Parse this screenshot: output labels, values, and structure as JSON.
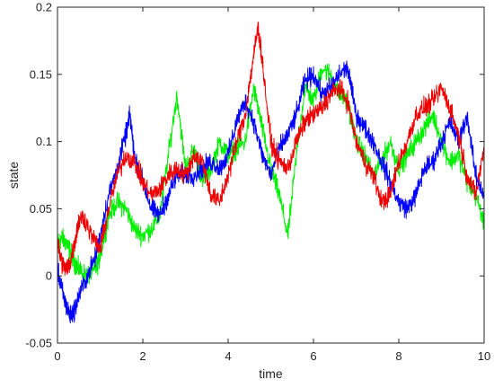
{
  "chart_data": {
    "type": "line",
    "title": "",
    "xlabel": "time",
    "ylabel": "state",
    "xlim": [
      0,
      10
    ],
    "ylim": [
      -0.05,
      0.2
    ],
    "grid": false,
    "x_ticks": [
      0,
      2,
      4,
      6,
      8,
      10
    ],
    "y_ticks": [
      -0.05,
      0,
      0.05,
      0.1,
      0.15,
      0.2
    ],
    "x_tick_labels": [
      "0",
      "2",
      "4",
      "6",
      "8",
      "10"
    ],
    "y_tick_labels": [
      "-0.05",
      "0",
      "0.05",
      "0.1",
      "0.15",
      "0.2"
    ],
    "series": [
      {
        "color": "#0000ff",
        "x": [
          0,
          0.1,
          0.2,
          0.3,
          0.4,
          0.5,
          0.7,
          0.9,
          1.0,
          1.2,
          1.4,
          1.6,
          1.7,
          1.8,
          2.0,
          2.2,
          2.4,
          2.6,
          2.8,
          3.0,
          3.2,
          3.4,
          3.6,
          3.8,
          4.0,
          4.2,
          4.4,
          4.6,
          4.8,
          5.0,
          5.2,
          5.4,
          5.6,
          5.8,
          6.0,
          6.2,
          6.4,
          6.6,
          6.8,
          7.0,
          7.2,
          7.4,
          7.6,
          7.8,
          8.0,
          8.2,
          8.4,
          8.6,
          8.8,
          9.0,
          9.2,
          9.4,
          9.6,
          9.8,
          10.0
        ],
        "y": [
          0.005,
          -0.01,
          -0.022,
          -0.03,
          -0.025,
          -0.015,
          0.0,
          0.015,
          0.03,
          0.06,
          0.08,
          0.105,
          0.12,
          0.09,
          0.07,
          0.05,
          0.045,
          0.06,
          0.075,
          0.075,
          0.075,
          0.08,
          0.085,
          0.08,
          0.09,
          0.115,
          0.13,
          0.115,
          0.09,
          0.075,
          0.095,
          0.105,
          0.12,
          0.145,
          0.15,
          0.135,
          0.14,
          0.15,
          0.155,
          0.12,
          0.11,
          0.1,
          0.085,
          0.07,
          0.055,
          0.05,
          0.06,
          0.08,
          0.085,
          0.1,
          0.115,
          0.1,
          0.12,
          0.075,
          0.06
        ]
      },
      {
        "color": "#00ee00",
        "x": [
          0,
          0.1,
          0.2,
          0.3,
          0.4,
          0.5,
          0.7,
          0.9,
          1.0,
          1.2,
          1.4,
          1.6,
          1.8,
          2.0,
          2.2,
          2.4,
          2.6,
          2.8,
          3.0,
          3.2,
          3.4,
          3.6,
          3.8,
          4.0,
          4.2,
          4.4,
          4.6,
          4.8,
          5.0,
          5.2,
          5.4,
          5.6,
          5.8,
          6.0,
          6.2,
          6.4,
          6.6,
          6.8,
          7.0,
          7.2,
          7.4,
          7.6,
          7.8,
          8.0,
          8.2,
          8.4,
          8.6,
          8.8,
          9.0,
          9.2,
          9.4,
          9.6,
          9.8,
          10.0
        ],
        "y": [
          0.025,
          0.028,
          0.025,
          0.018,
          0.01,
          0.005,
          0.0,
          0.005,
          0.015,
          0.045,
          0.055,
          0.05,
          0.035,
          0.03,
          0.035,
          0.045,
          0.09,
          0.135,
          0.08,
          0.095,
          0.07,
          0.08,
          0.1,
          0.09,
          0.095,
          0.1,
          0.14,
          0.11,
          0.08,
          0.06,
          0.03,
          0.09,
          0.14,
          0.13,
          0.155,
          0.15,
          0.135,
          0.13,
          0.1,
          0.09,
          0.075,
          0.085,
          0.1,
          0.08,
          0.09,
          0.1,
          0.11,
          0.12,
          0.1,
          0.085,
          0.09,
          0.07,
          0.06,
          0.04
        ]
      },
      {
        "color": "#ee0000",
        "x": [
          0,
          0.1,
          0.2,
          0.3,
          0.4,
          0.5,
          0.6,
          0.8,
          1.0,
          1.2,
          1.4,
          1.6,
          1.8,
          2.0,
          2.2,
          2.4,
          2.6,
          2.8,
          3.0,
          3.2,
          3.4,
          3.6,
          3.8,
          4.0,
          4.2,
          4.4,
          4.6,
          4.7,
          4.8,
          5.0,
          5.2,
          5.4,
          5.6,
          5.8,
          6.0,
          6.2,
          6.4,
          6.6,
          6.8,
          7.0,
          7.2,
          7.4,
          7.6,
          7.8,
          8.0,
          8.2,
          8.4,
          8.6,
          8.8,
          9.0,
          9.2,
          9.4,
          9.6,
          9.8,
          10.0
        ],
        "y": [
          0.025,
          0.01,
          0.005,
          0.01,
          0.025,
          0.04,
          0.045,
          0.03,
          0.02,
          0.05,
          0.075,
          0.09,
          0.085,
          0.07,
          0.06,
          0.065,
          0.075,
          0.08,
          0.075,
          0.09,
          0.085,
          0.06,
          0.055,
          0.075,
          0.1,
          0.12,
          0.165,
          0.185,
          0.16,
          0.1,
          0.085,
          0.08,
          0.1,
          0.115,
          0.12,
          0.125,
          0.135,
          0.14,
          0.13,
          0.1,
          0.085,
          0.075,
          0.055,
          0.06,
          0.085,
          0.1,
          0.12,
          0.125,
          0.13,
          0.14,
          0.125,
          0.105,
          0.075,
          0.06,
          0.095
        ]
      }
    ]
  }
}
